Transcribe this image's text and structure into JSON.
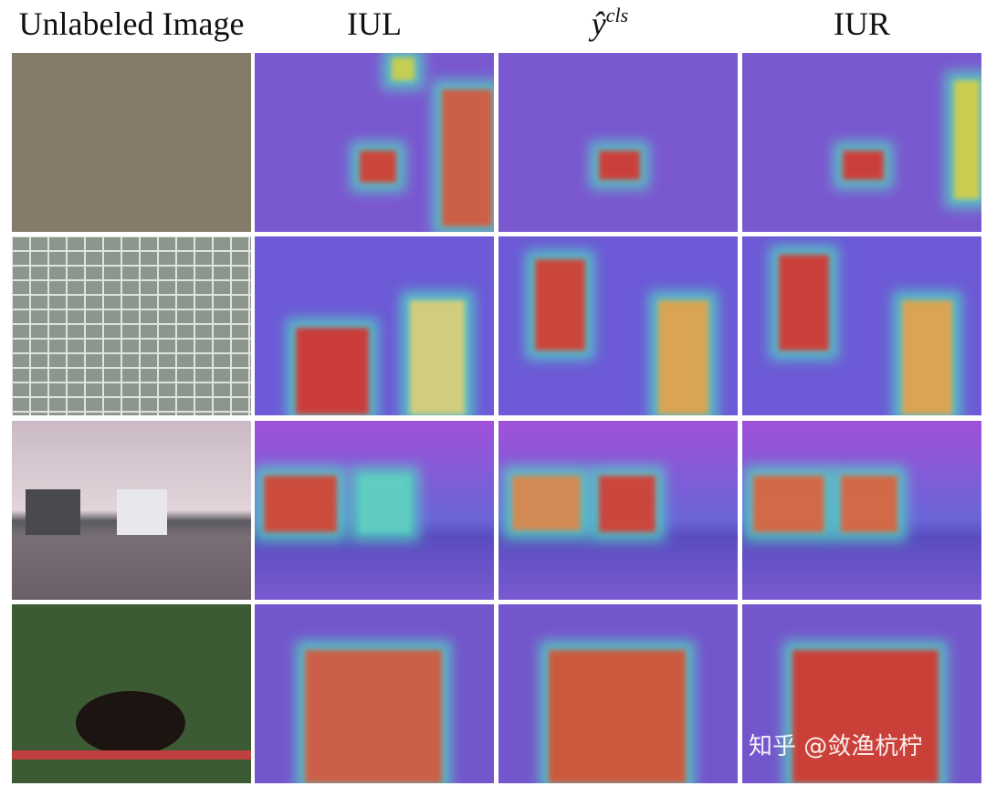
{
  "header": {
    "columns": [
      {
        "text": "Unlabeled Image"
      },
      {
        "text": "IUL"
      },
      {
        "base": "ŷ",
        "sup": "cls"
      },
      {
        "text": "IUR"
      }
    ]
  },
  "watermark": "知乎 @敛渔杭柠"
}
